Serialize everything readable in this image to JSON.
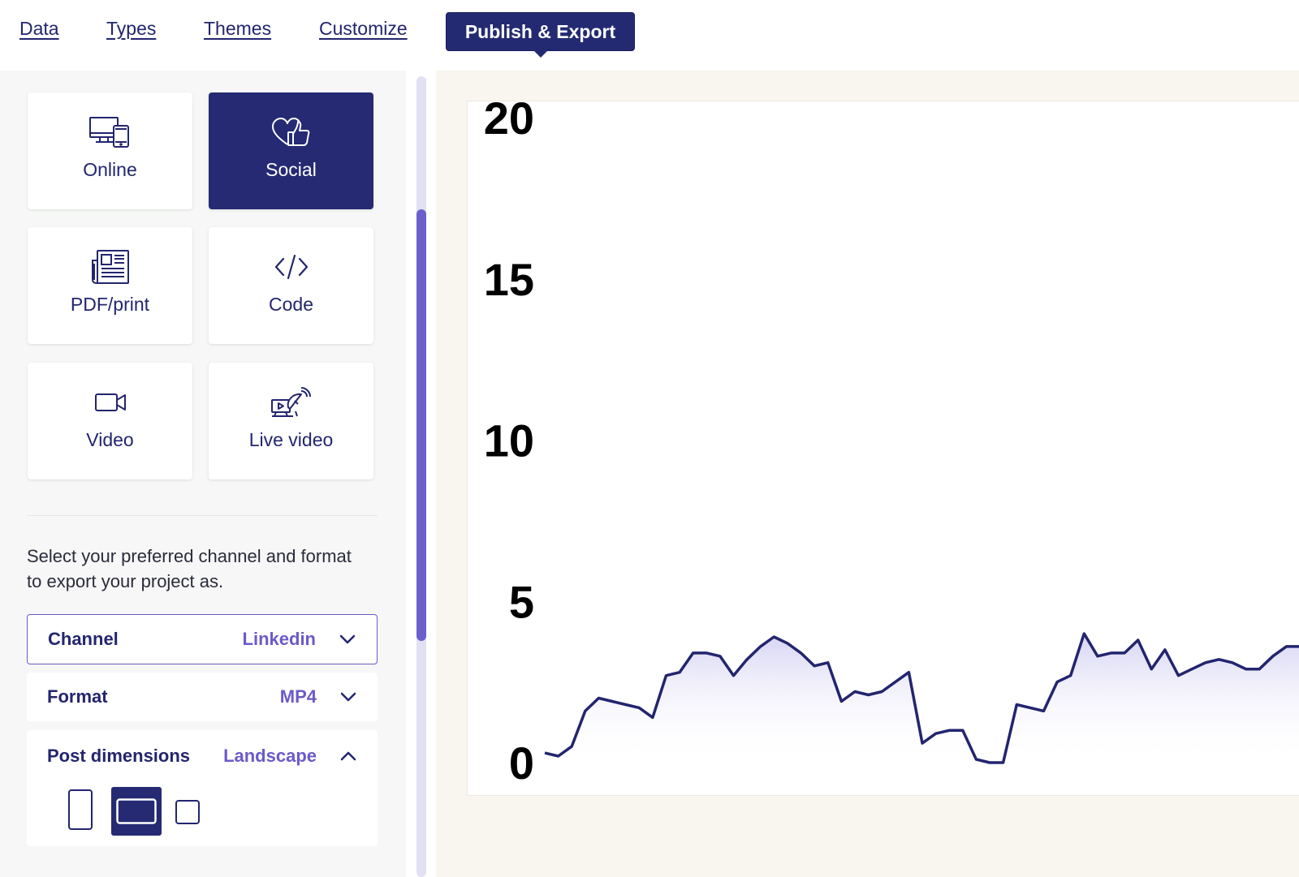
{
  "nav": {
    "tabs": [
      "Data",
      "Types",
      "Themes",
      "Customize"
    ],
    "active_tab": "Publish & Export"
  },
  "export_options": [
    {
      "label": "Online",
      "icon": "devices-icon",
      "selected": false
    },
    {
      "label": "Social",
      "icon": "heart-thumbs-up-icon",
      "selected": true
    },
    {
      "label": "PDF/print",
      "icon": "newspaper-icon",
      "selected": false
    },
    {
      "label": "Code",
      "icon": "code-icon",
      "selected": false
    },
    {
      "label": "Video",
      "icon": "video-camera-icon",
      "selected": false
    },
    {
      "label": "Live video",
      "icon": "satellite-broadcast-icon",
      "selected": false
    }
  ],
  "description": "Select your preferred channel and format to export your project as.",
  "settings": {
    "channel": {
      "label": "Channel",
      "value": "Linkedin",
      "expanded": false
    },
    "format": {
      "label": "Format",
      "value": "MP4",
      "expanded": false
    },
    "post_dimensions": {
      "label": "Post dimensions",
      "value": "Landscape",
      "expanded": true,
      "options": [
        "portrait",
        "landscape",
        "square"
      ],
      "selected": "landscape"
    }
  },
  "colors": {
    "primary": "#242a72",
    "accent": "#6a5ac9",
    "panel_bg": "#f6f7f6",
    "preview_bg": "#f8f6ef"
  },
  "chart_data": {
    "type": "area",
    "y_ticks": [
      "20",
      "15",
      "10",
      "5",
      "0"
    ],
    "ylim": [
      0,
      20
    ],
    "grid": false,
    "series": [
      {
        "color": "#23256f",
        "values": [
          0.3,
          0.2,
          0.5,
          1.6,
          2.0,
          1.9,
          1.8,
          1.7,
          1.4,
          2.7,
          2.8,
          3.4,
          3.4,
          3.3,
          2.7,
          3.2,
          3.6,
          3.9,
          3.7,
          3.4,
          3.0,
          3.1,
          1.9,
          2.2,
          2.1,
          2.2,
          2.5,
          2.8,
          0.6,
          0.9,
          1.0,
          1.0,
          0.1,
          0.0,
          0.0,
          1.8,
          1.7,
          1.6,
          2.5,
          2.7,
          4.0,
          3.3,
          3.4,
          3.4,
          3.8,
          2.9,
          3.5,
          2.7,
          2.9,
          3.1,
          3.2,
          3.1,
          2.9,
          2.9,
          3.3,
          3.6,
          3.6
        ]
      }
    ]
  }
}
